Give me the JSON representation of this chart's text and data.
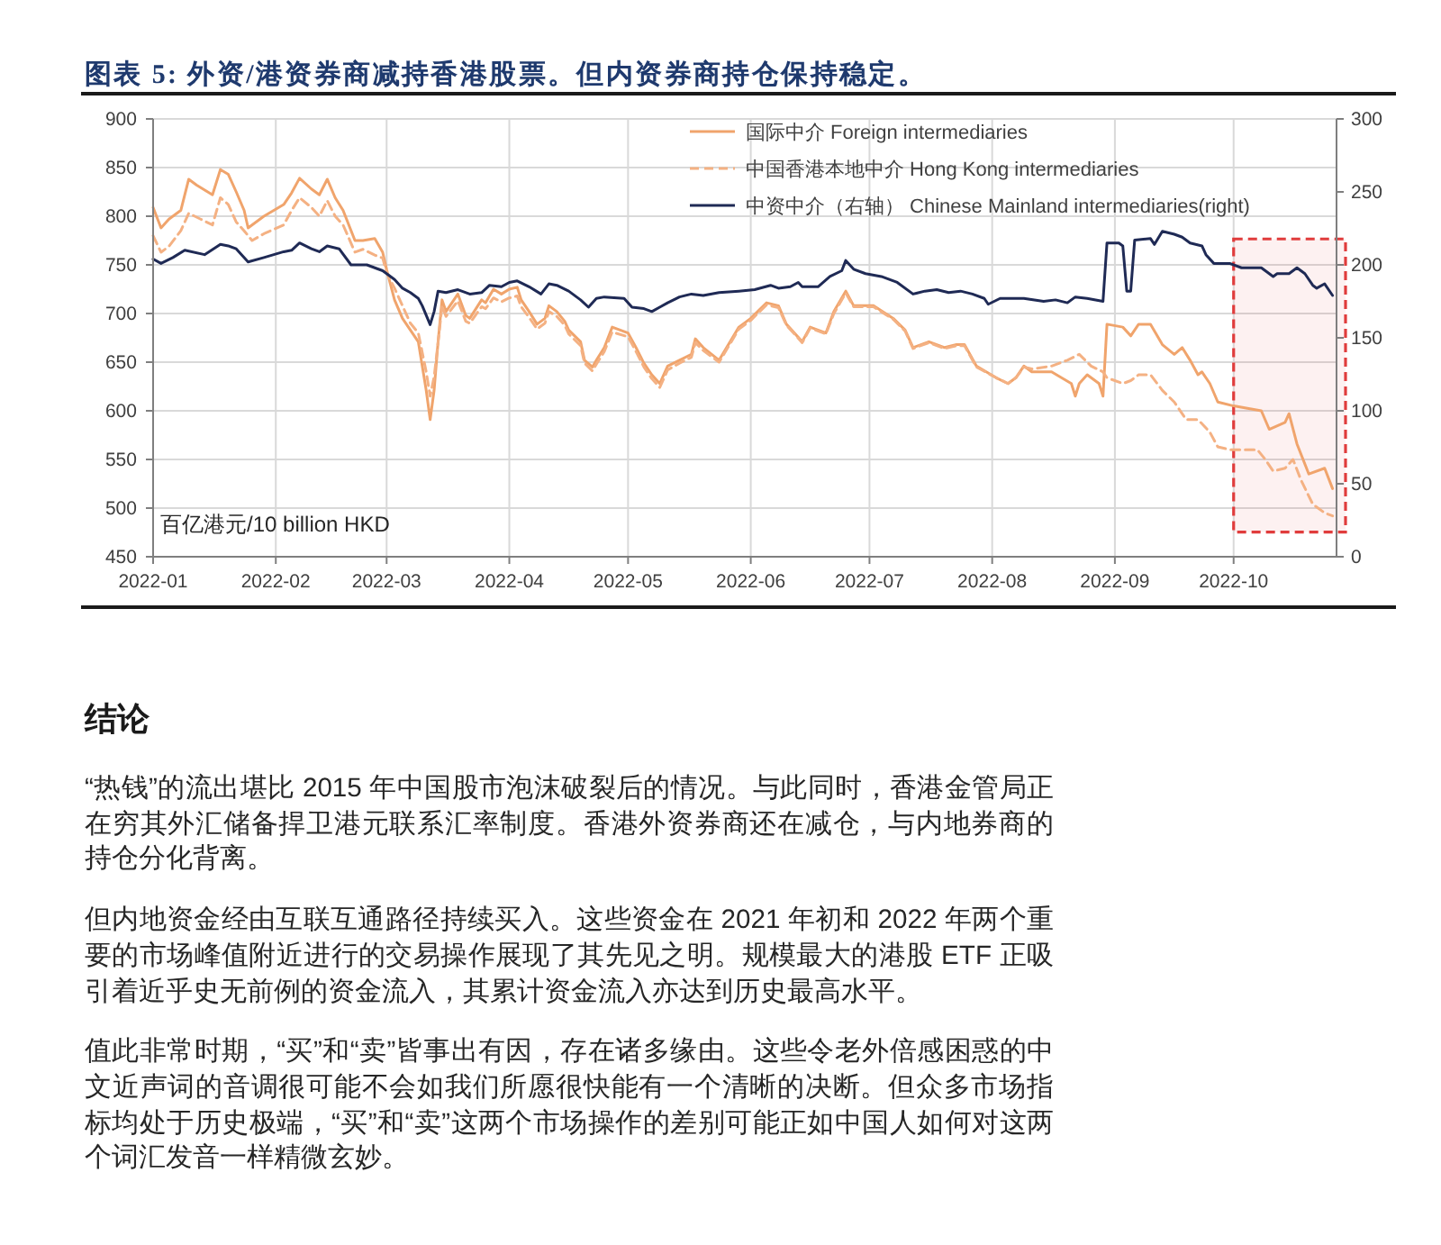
{
  "chart_data": {
    "type": "line",
    "title": "图表 5: 外资/港资券商减持香港股票。但内资券商持仓保持稳定。",
    "ylabel": "百亿港元/10 billion HKD",
    "xlim": [
      "2022-01-01",
      "2022-10-27"
    ],
    "xticks": [
      "2022-01",
      "2022-02",
      "2022-03",
      "2022-04",
      "2022-05",
      "2022-06",
      "2022-07",
      "2022-08",
      "2022-09",
      "2022-10"
    ],
    "ylim": [
      450,
      900
    ],
    "yticks": [
      450,
      500,
      550,
      600,
      650,
      700,
      750,
      800,
      850,
      900
    ],
    "y2lim": [
      0,
      300
    ],
    "y2ticks": [
      0,
      50,
      100,
      150,
      200,
      250,
      300
    ],
    "grid": true,
    "legend": "top right",
    "bands": [
      {
        "axis": "x",
        "from": "2022-10-01",
        "to": "2022-10-27",
        "color": "#e03c3c"
      }
    ],
    "series": [
      {
        "name": "国际中介 Foreign intermediaries",
        "color": "#f0a46c",
        "x": [
          "2022-01-01",
          "2022-01-03",
          "2022-01-05",
          "2022-01-08",
          "2022-01-10",
          "2022-01-12",
          "2022-01-16",
          "2022-01-18",
          "2022-01-20",
          "2022-01-22",
          "2022-01-24",
          "2022-01-25",
          "2022-01-29",
          "2022-02-03",
          "2022-02-05",
          "2022-02-07",
          "2022-02-10",
          "2022-02-12",
          "2022-02-14",
          "2022-02-16",
          "2022-02-18",
          "2022-02-21",
          "2022-02-23",
          "2022-02-26",
          "2022-02-28",
          "2022-03-01",
          "2022-03-03",
          "2022-03-05",
          "2022-03-07",
          "2022-03-09",
          "2022-03-10",
          "2022-03-11",
          "2022-03-12",
          "2022-03-13",
          "2022-03-14",
          "2022-03-15",
          "2022-03-16",
          "2022-03-19",
          "2022-03-21",
          "2022-03-22",
          "2022-03-25",
          "2022-03-26",
          "2022-03-28",
          "2022-03-30",
          "2022-04-01",
          "2022-04-03",
          "2022-04-04",
          "2022-04-06",
          "2022-04-08",
          "2022-04-10",
          "2022-04-11",
          "2022-04-13",
          "2022-04-15",
          "2022-04-16",
          "2022-04-19",
          "2022-04-20",
          "2022-04-22",
          "2022-04-23",
          "2022-04-25",
          "2022-04-27",
          "2022-05-01",
          "2022-05-03",
          "2022-05-05",
          "2022-05-07",
          "2022-05-09",
          "2022-05-11",
          "2022-05-14",
          "2022-05-17",
          "2022-05-18",
          "2022-05-20",
          "2022-05-24",
          "2022-05-29",
          "2022-06-01",
          "2022-06-05",
          "2022-06-08",
          "2022-06-10",
          "2022-06-14",
          "2022-06-16",
          "2022-06-20",
          "2022-06-22",
          "2022-06-25",
          "2022-06-27",
          "2022-07-02",
          "2022-07-07",
          "2022-07-10",
          "2022-07-12",
          "2022-07-16",
          "2022-07-20",
          "2022-07-23",
          "2022-07-25",
          "2022-07-28",
          "2022-08-02",
          "2022-08-05",
          "2022-08-07",
          "2022-08-09",
          "2022-08-11",
          "2022-08-16",
          "2022-08-21",
          "2022-08-22",
          "2022-08-23",
          "2022-08-25",
          "2022-08-28",
          "2022-08-29",
          "2022-08-30",
          "2022-09-03",
          "2022-09-05",
          "2022-09-07",
          "2022-09-10",
          "2022-09-13",
          "2022-09-16",
          "2022-09-18",
          "2022-09-20",
          "2022-09-22",
          "2022-09-23",
          "2022-09-25",
          "2022-09-27",
          "2022-10-01",
          "2022-10-08",
          "2022-10-10",
          "2022-10-14",
          "2022-10-15",
          "2022-10-17",
          "2022-10-20",
          "2022-10-24",
          "2022-10-26"
        ],
        "values": [
          809,
          788,
          797,
          806,
          838,
          832,
          822,
          848,
          843,
          825,
          806,
          788,
          800,
          812,
          824,
          839,
          828,
          822,
          838,
          819,
          806,
          775,
          775,
          777,
          763,
          745,
          714,
          695,
          683,
          671,
          646,
          621,
          591,
          621,
          671,
          714,
          702,
          720,
          698,
          695,
          714,
          711,
          725,
          720,
          725,
          727,
          714,
          702,
          689,
          695,
          708,
          702,
          692,
          683,
          671,
          652,
          645,
          652,
          665,
          686,
          680,
          665,
          649,
          637,
          628,
          646,
          652,
          658,
          674,
          665,
          652,
          686,
          695,
          711,
          708,
          689,
          671,
          686,
          680,
          702,
          723,
          708,
          708,
          695,
          683,
          665,
          671,
          665,
          668,
          668,
          646,
          634,
          628,
          634,
          646,
          640,
          640,
          628,
          615,
          628,
          637,
          628,
          615,
          689,
          686,
          677,
          689,
          689,
          668,
          658,
          665,
          652,
          637,
          640,
          628,
          609,
          605,
          600,
          581,
          588,
          597,
          566,
          535,
          541,
          520
        ]
      },
      {
        "name": "中国香港本地中介 Hong Kong intermediaries",
        "color": "#f4b183",
        "line_style": "dashed",
        "x": [
          "2022-01-01",
          "2022-01-03",
          "2022-01-05",
          "2022-01-08",
          "2022-01-10",
          "2022-01-13",
          "2022-01-16",
          "2022-01-18",
          "2022-01-20",
          "2022-01-22",
          "2022-01-24",
          "2022-01-26",
          "2022-01-29",
          "2022-02-03",
          "2022-02-05",
          "2022-02-07",
          "2022-02-10",
          "2022-02-12",
          "2022-02-14",
          "2022-02-16",
          "2022-02-18",
          "2022-02-21",
          "2022-02-23",
          "2022-02-26",
          "2022-02-28",
          "2022-03-01",
          "2022-03-03",
          "2022-03-05",
          "2022-03-07",
          "2022-03-09",
          "2022-03-10",
          "2022-03-11",
          "2022-03-12",
          "2022-03-13",
          "2022-03-14",
          "2022-03-15",
          "2022-03-16",
          "2022-03-19",
          "2022-03-21",
          "2022-03-22",
          "2022-03-25",
          "2022-03-26",
          "2022-03-28",
          "2022-03-30",
          "2022-04-01",
          "2022-04-03",
          "2022-04-04",
          "2022-04-06",
          "2022-04-08",
          "2022-04-10",
          "2022-04-11",
          "2022-04-13",
          "2022-04-15",
          "2022-04-16",
          "2022-04-19",
          "2022-04-20",
          "2022-04-22",
          "2022-04-23",
          "2022-04-25",
          "2022-04-27",
          "2022-05-01",
          "2022-05-03",
          "2022-05-05",
          "2022-05-07",
          "2022-05-09",
          "2022-05-11",
          "2022-05-14",
          "2022-05-17",
          "2022-05-18",
          "2022-05-20",
          "2022-05-24",
          "2022-05-29",
          "2022-06-01",
          "2022-06-05",
          "2022-06-08",
          "2022-06-10",
          "2022-06-14",
          "2022-06-16",
          "2022-06-20",
          "2022-06-22",
          "2022-06-25",
          "2022-06-27",
          "2022-07-02",
          "2022-07-07",
          "2022-07-10",
          "2022-07-12",
          "2022-07-16",
          "2022-07-20",
          "2022-07-23",
          "2022-07-25",
          "2022-07-28",
          "2022-08-02",
          "2022-08-05",
          "2022-08-07",
          "2022-08-09",
          "2022-08-11",
          "2022-08-16",
          "2022-08-20",
          "2022-08-23",
          "2022-08-26",
          "2022-08-29",
          "2022-08-30",
          "2022-09-03",
          "2022-09-05",
          "2022-09-07",
          "2022-09-10",
          "2022-09-13",
          "2022-09-16",
          "2022-09-19",
          "2022-09-22",
          "2022-09-25",
          "2022-09-27",
          "2022-09-30",
          "2022-10-04",
          "2022-10-07",
          "2022-10-09",
          "2022-10-11",
          "2022-10-14",
          "2022-10-16",
          "2022-10-18",
          "2022-10-21",
          "2022-10-24",
          "2022-10-26"
        ],
        "values": [
          780,
          763,
          769,
          785,
          803,
          797,
          791,
          819,
          812,
          794,
          785,
          775,
          782,
          791,
          806,
          819,
          809,
          800,
          816,
          800,
          791,
          763,
          766,
          760,
          757,
          742,
          726,
          708,
          690,
          680,
          660,
          640,
          615,
          635,
          670,
          708,
          697,
          713,
          692,
          690,
          707,
          705,
          716,
          712,
          716,
          718,
          707,
          696,
          684,
          690,
          702,
          697,
          688,
          679,
          667,
          649,
          641,
          648,
          661,
          681,
          676,
          661,
          645,
          633,
          624,
          642,
          649,
          655,
          670,
          662,
          650,
          684,
          693,
          709,
          706,
          688,
          670,
          685,
          679,
          700,
          721,
          707,
          707,
          694,
          682,
          664,
          670,
          664,
          667,
          667,
          645,
          634,
          628,
          634,
          645,
          643,
          646,
          652,
          658,
          646,
          640,
          634,
          628,
          631,
          637,
          637,
          621,
          609,
          591,
          591,
          578,
          563,
          560,
          560,
          560,
          550,
          538,
          541,
          550,
          529,
          504,
          495,
          492
        ]
      },
      {
        "name": "中资中介（右轴） Chinese Mainland intermediaries(right)",
        "color": "#1f2a55",
        "axis": "y2",
        "x": [
          "2022-01-01",
          "2022-01-03",
          "2022-01-06",
          "2022-01-09",
          "2022-01-14",
          "2022-01-18",
          "2022-01-20",
          "2022-01-22",
          "2022-01-25",
          "2022-01-29",
          "2022-02-03",
          "2022-02-05",
          "2022-02-07",
          "2022-02-10",
          "2022-02-12",
          "2022-02-14",
          "2022-02-17",
          "2022-02-20",
          "2022-02-24",
          "2022-02-26",
          "2022-02-28",
          "2022-03-03",
          "2022-03-05",
          "2022-03-07",
          "2022-03-09",
          "2022-03-10",
          "2022-03-12",
          "2022-03-13",
          "2022-03-14",
          "2022-03-16",
          "2022-03-19",
          "2022-03-22",
          "2022-03-25",
          "2022-03-27",
          "2022-03-30",
          "2022-04-01",
          "2022-04-03",
          "2022-04-06",
          "2022-04-09",
          "2022-04-11",
          "2022-04-13",
          "2022-04-16",
          "2022-04-19",
          "2022-04-21",
          "2022-04-23",
          "2022-04-25",
          "2022-04-30",
          "2022-05-02",
          "2022-05-05",
          "2022-05-07",
          "2022-05-09",
          "2022-05-11",
          "2022-05-14",
          "2022-05-17",
          "2022-05-20",
          "2022-05-24",
          "2022-05-29",
          "2022-06-02",
          "2022-06-06",
          "2022-06-08",
          "2022-06-11",
          "2022-06-13",
          "2022-06-14",
          "2022-06-18",
          "2022-06-21",
          "2022-06-24",
          "2022-06-25",
          "2022-06-27",
          "2022-06-30",
          "2022-07-04",
          "2022-07-08",
          "2022-07-12",
          "2022-07-15",
          "2022-07-18",
          "2022-07-21",
          "2022-07-24",
          "2022-07-27",
          "2022-07-30",
          "2022-07-31",
          "2022-08-03",
          "2022-08-06",
          "2022-08-09",
          "2022-08-14",
          "2022-08-17",
          "2022-08-20",
          "2022-08-22",
          "2022-08-25",
          "2022-08-29",
          "2022-08-30",
          "2022-09-02",
          "2022-09-03",
          "2022-09-04",
          "2022-09-05",
          "2022-09-06",
          "2022-09-10",
          "2022-09-11",
          "2022-09-13",
          "2022-09-16",
          "2022-09-18",
          "2022-09-20",
          "2022-09-23",
          "2022-09-24",
          "2022-09-26",
          "2022-09-30",
          "2022-10-03",
          "2022-10-08",
          "2022-10-11",
          "2022-10-12",
          "2022-10-15",
          "2022-10-17",
          "2022-10-19",
          "2022-10-21",
          "2022-10-22",
          "2022-10-24",
          "2022-10-26"
        ],
        "values": [
          204,
          201,
          205,
          210,
          207,
          214,
          213,
          211,
          202,
          205,
          209,
          210,
          215,
          211,
          209,
          213,
          211,
          200,
          200,
          198,
          196,
          190,
          184,
          181,
          177,
          172,
          159,
          168,
          182,
          181,
          183,
          180,
          181,
          186,
          185,
          188,
          189,
          185,
          180,
          187,
          186,
          182,
          176,
          171,
          177,
          178,
          177,
          171,
          170,
          168,
          171,
          174,
          178,
          180,
          179,
          181,
          182,
          183,
          186,
          184,
          185,
          188,
          185,
          185,
          192,
          196,
          203,
          197,
          194,
          192,
          188,
          180,
          182,
          183,
          181,
          182,
          180,
          177,
          173,
          177,
          177,
          177,
          175,
          176,
          174,
          178,
          177,
          175,
          215,
          215,
          213,
          182,
          182,
          217,
          218,
          214,
          223,
          221,
          219,
          215,
          213,
          207,
          201,
          201,
          198,
          198,
          192,
          194,
          194,
          198,
          194,
          186,
          184,
          187,
          179
        ]
      }
    ],
    "annotations": [
      "结论",
      "“热钱”的流出堪比 2015 年中国股市泡沫破裂后的情况。与此同时，香港金管局正在穷其外汇储备捍卫港元联系汇率制度。香港外资券商还在减仓，与内地券商的持仓分化背离。",
      "但内地资金经由互联互通路径持续买入。这些资金在 2021 年初和 2022 年两个重要的市场峰值附近进行的交易操作展现了其先见之明。规模最大的港股 ETF 正吸引着近乎史无前例的资金流入，其累计资金流入亦达到历史最高水平。",
      "值此非常时期，“买”和“卖”皆事出有因，存在诸多缘由。这些令老外倍感困惑的中文近声词的音调很可能不会如我们所愿很快能有一个清晰的决断。但众多市场指标均处于历史极端，“买”和“卖”这两个市场操作的差别可能正如中国人如何对这两个词汇发音一样精微玄妙。"
    ]
  }
}
